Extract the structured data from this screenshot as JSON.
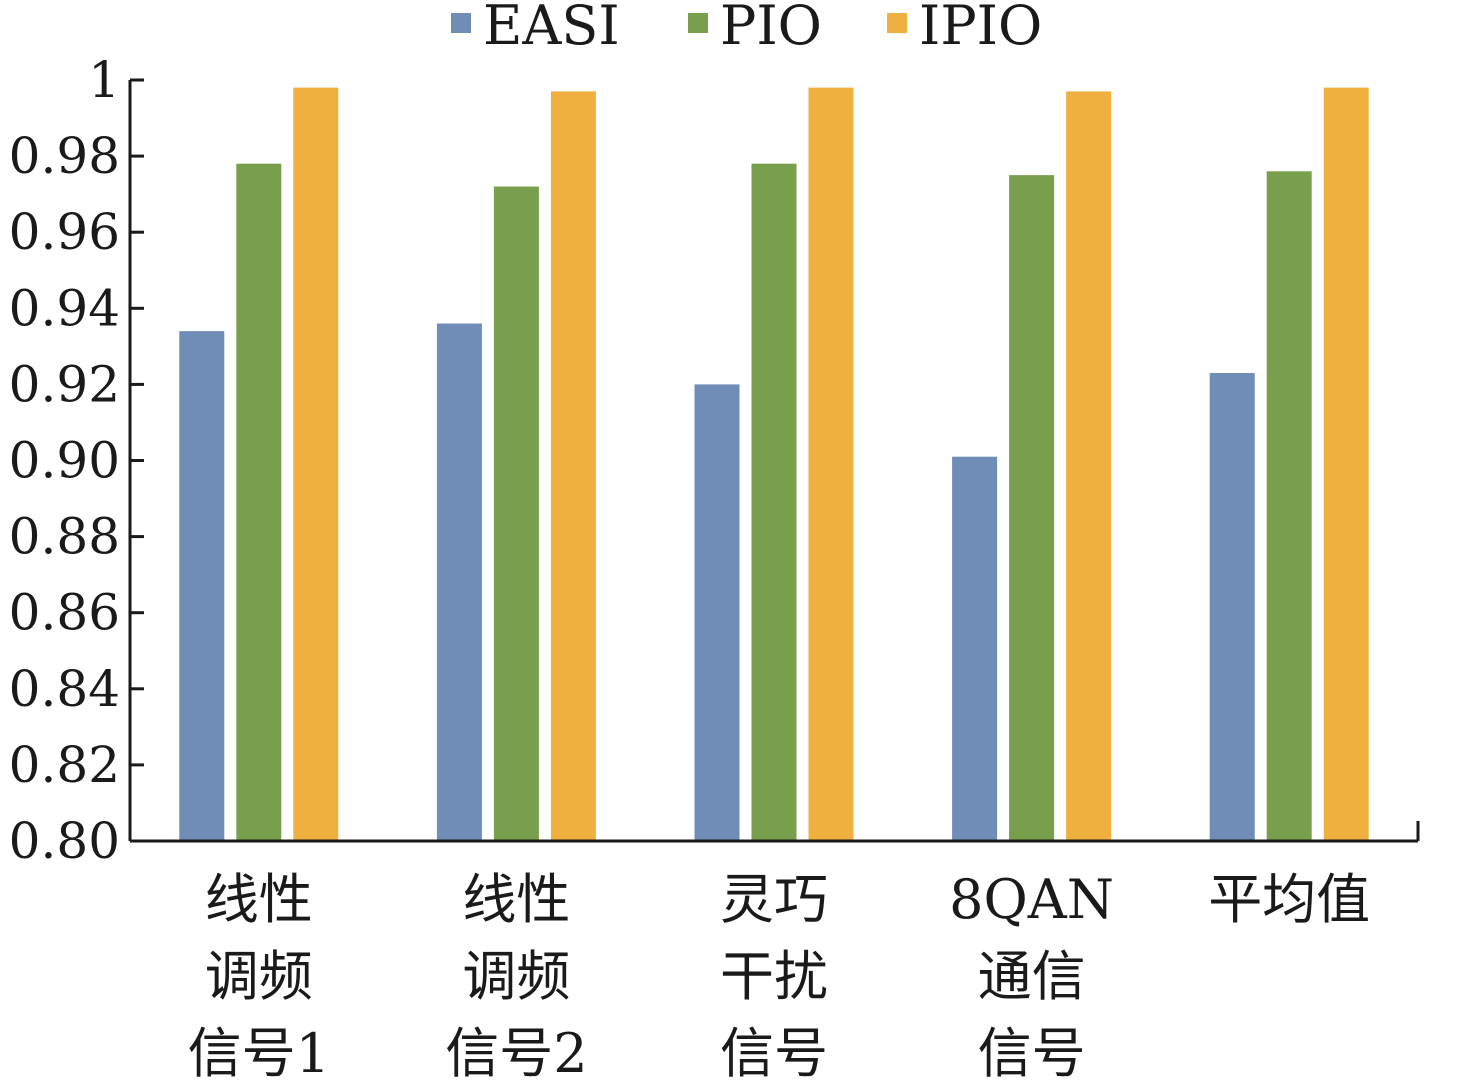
{
  "chart_data": {
    "type": "bar",
    "title": "",
    "xlabel": "",
    "ylabel": "",
    "ylim": [
      0.8,
      1.0
    ],
    "y_ticks": [
      "0.80",
      "0.82",
      "0.84",
      "0.86",
      "0.88",
      "0.90",
      "0.92",
      "0.94",
      "0.96",
      "0.98",
      "1"
    ],
    "y_tick_values": [
      0.8,
      0.82,
      0.84,
      0.86,
      0.88,
      0.9,
      0.92,
      0.94,
      0.96,
      0.98,
      1.0
    ],
    "categories": [
      [
        "线性",
        "调频",
        "信号1"
      ],
      [
        "线性",
        "调频",
        "信号2"
      ],
      [
        "灵巧",
        "干扰",
        "信号"
      ],
      [
        "8QAN",
        "通信",
        "信号"
      ],
      [
        "平均值"
      ]
    ],
    "series": [
      {
        "name": "EASI",
        "color": "#6f8db7",
        "values": [
          0.934,
          0.936,
          0.92,
          0.901,
          0.923
        ]
      },
      {
        "name": "PIO",
        "color": "#789f4b",
        "values": [
          0.978,
          0.972,
          0.978,
          0.975,
          0.976
        ]
      },
      {
        "name": "IPIO",
        "color": "#f0b040",
        "values": [
          0.998,
          0.997,
          0.998,
          0.997,
          0.998
        ]
      }
    ],
    "legend_position": "top",
    "grid": false
  }
}
